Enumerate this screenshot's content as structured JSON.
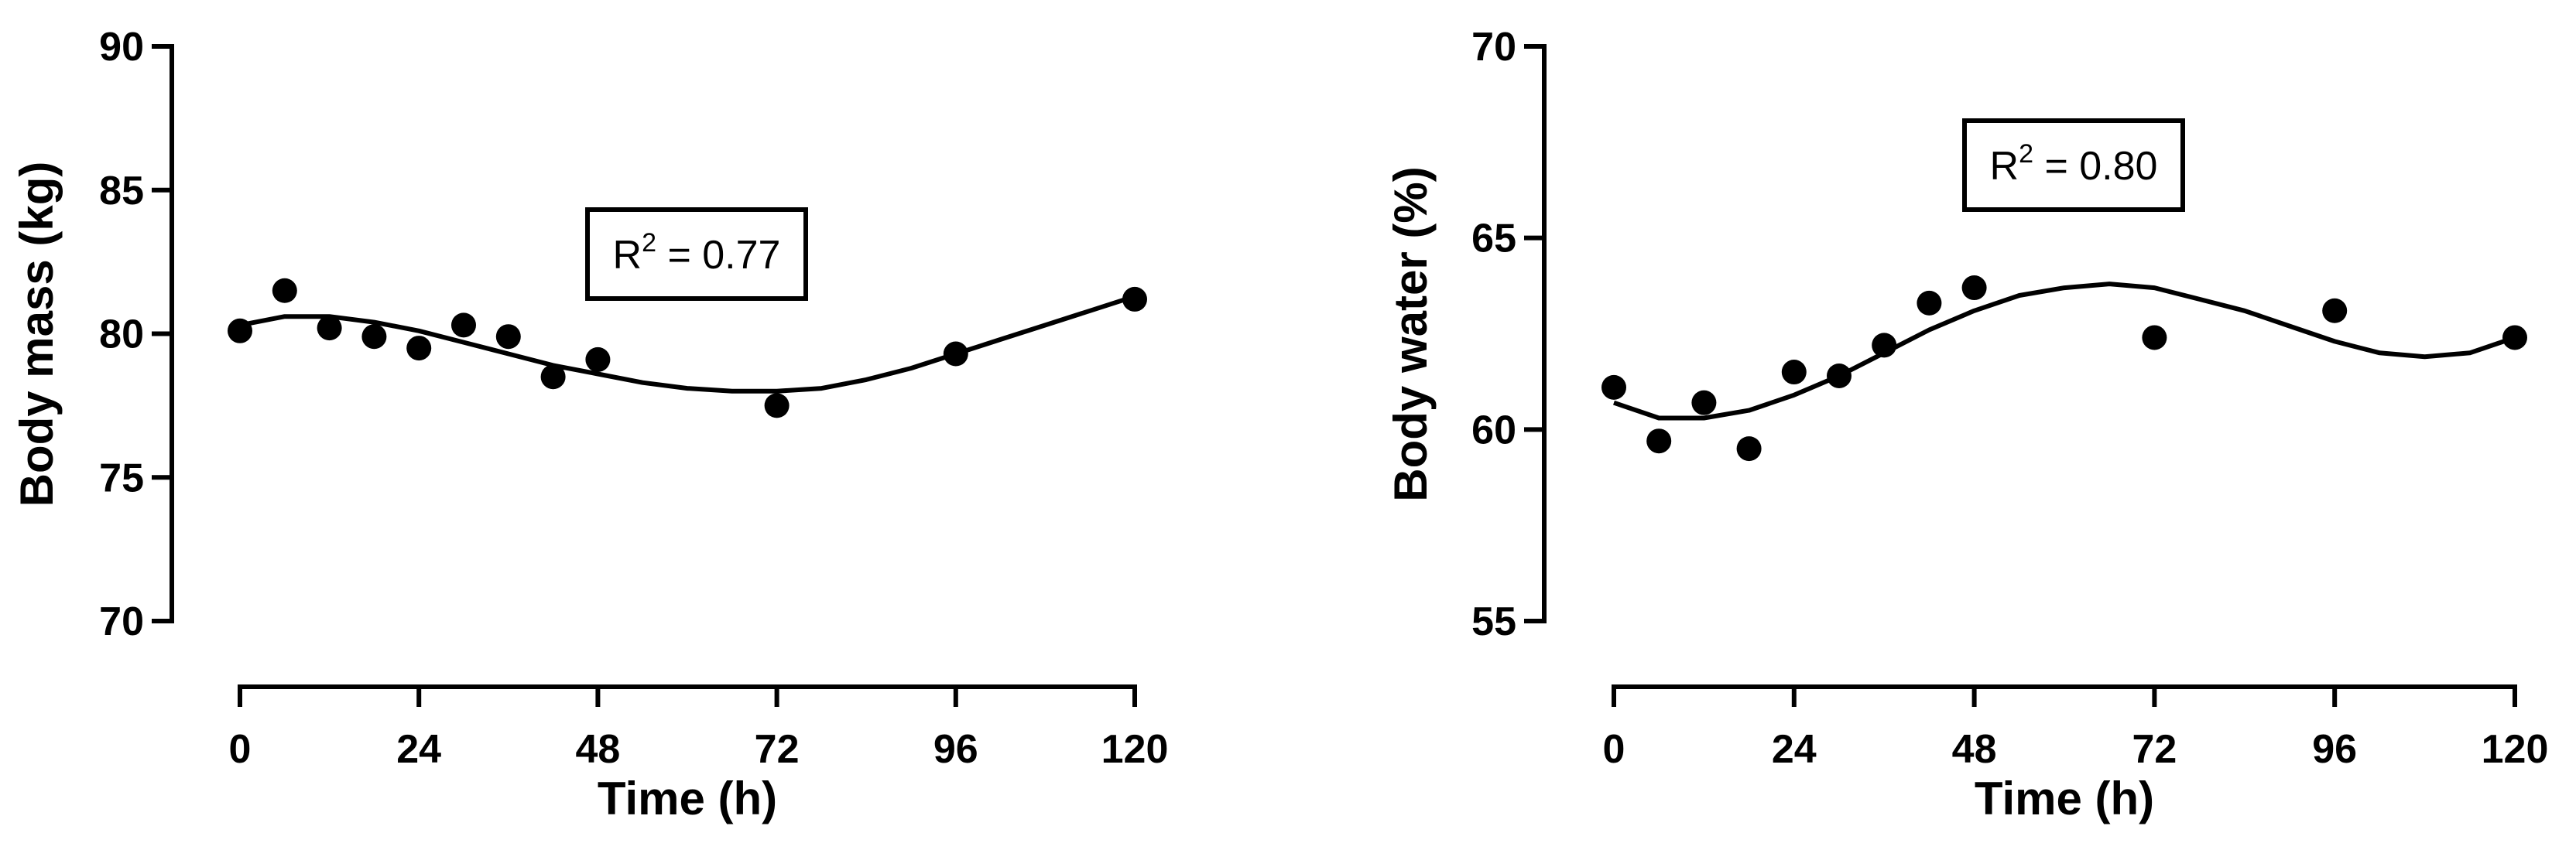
{
  "chart_data": [
    {
      "type": "scatter",
      "xlabel": "Time (h)",
      "ylabel": "Body mass (kg)",
      "xlim": [
        0,
        120
      ],
      "ylim": [
        70,
        90
      ],
      "xticks": [
        0,
        24,
        48,
        72,
        96,
        120
      ],
      "yticks": [
        70,
        75,
        80,
        85,
        90
      ],
      "annotation": {
        "label": "R",
        "superscript": "2",
        "value_text": " = 0.77"
      },
      "points": [
        {
          "x": 0,
          "y": 80.1
        },
        {
          "x": 6,
          "y": 81.5
        },
        {
          "x": 12,
          "y": 80.2
        },
        {
          "x": 18,
          "y": 79.9
        },
        {
          "x": 24,
          "y": 79.5
        },
        {
          "x": 30,
          "y": 80.3
        },
        {
          "x": 36,
          "y": 79.9
        },
        {
          "x": 42,
          "y": 78.5
        },
        {
          "x": 48,
          "y": 79.1
        },
        {
          "x": 72,
          "y": 77.5
        },
        {
          "x": 96,
          "y": 79.3
        },
        {
          "x": 120,
          "y": 81.2
        }
      ],
      "fit_curve": {
        "x": [
          0,
          6,
          12,
          18,
          24,
          30,
          36,
          42,
          48,
          54,
          60,
          66,
          72,
          78,
          84,
          90,
          96,
          102,
          108,
          114,
          120
        ],
        "y": [
          80.3,
          80.6,
          80.6,
          80.4,
          80.1,
          79.7,
          79.3,
          78.9,
          78.6,
          78.3,
          78.1,
          78.0,
          78.0,
          78.1,
          78.4,
          78.8,
          79.3,
          79.8,
          80.3,
          80.8,
          81.3
        ]
      }
    },
    {
      "type": "scatter",
      "xlabel": "Time (h)",
      "ylabel": "Body water (%)",
      "xlim": [
        0,
        120
      ],
      "ylim": [
        55,
        70
      ],
      "xticks": [
        0,
        24,
        48,
        72,
        96,
        120
      ],
      "yticks": [
        55,
        60,
        65,
        70
      ],
      "annotation": {
        "label": "R",
        "superscript": "2",
        "value_text": " = 0.80"
      },
      "points": [
        {
          "x": 0,
          "y": 61.1
        },
        {
          "x": 6,
          "y": 59.7
        },
        {
          "x": 12,
          "y": 60.7
        },
        {
          "x": 18,
          "y": 59.5
        },
        {
          "x": 24,
          "y": 61.5
        },
        {
          "x": 30,
          "y": 61.4
        },
        {
          "x": 36,
          "y": 62.2
        },
        {
          "x": 42,
          "y": 63.3
        },
        {
          "x": 48,
          "y": 63.7
        },
        {
          "x": 72,
          "y": 62.4
        },
        {
          "x": 96,
          "y": 63.1
        },
        {
          "x": 120,
          "y": 62.4
        }
      ],
      "fit_curve": {
        "x": [
          0,
          6,
          12,
          18,
          24,
          30,
          36,
          42,
          48,
          54,
          60,
          66,
          72,
          78,
          84,
          90,
          96,
          102,
          108,
          114,
          120
        ],
        "y": [
          60.7,
          60.3,
          60.3,
          60.5,
          60.9,
          61.4,
          62.0,
          62.6,
          63.1,
          63.5,
          63.7,
          63.8,
          63.7,
          63.4,
          63.1,
          62.7,
          62.3,
          62.0,
          61.9,
          62.0,
          62.4
        ]
      }
    }
  ]
}
